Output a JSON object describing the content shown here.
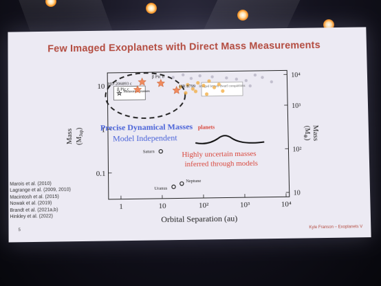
{
  "slide": {
    "title": "Few Imaged Exoplanets with Direct Mass Measurements",
    "page_number": "5",
    "credit": "Kyle Franson – Exoplanets V",
    "references": [
      "Marois et al. (2010)",
      "Lagrange et al. (2009, 2010)",
      "Macintosh et al. (2015)",
      "Nowak et al. (2019)",
      "Brandt et al. (2021a,b)",
      "Hinkley et al. (2022)"
    ]
  },
  "chart_data": {
    "type": "scatter",
    "xlabel": "Orbital Separation (au)",
    "ylabel": "Mass",
    "ylabel_unit": "(M",
    "ylabel_sub": "Jup",
    "right_ylabel": "Mass",
    "right_ylabel_unit": "(M",
    "right_ylabel_sub": "⊕",
    "x_scale": "log",
    "y_scale": "log",
    "xlim": [
      0.5,
      12000
    ],
    "ylim": [
      0.025,
      20
    ],
    "x_ticks": [
      "1",
      "10",
      "10²",
      "10³",
      "10⁴"
    ],
    "y_ticks": [
      "10",
      "1",
      "0.1"
    ],
    "right_y_ticks": [
      "10⁴",
      "10³",
      "10²",
      "10"
    ],
    "legend": {
      "entry": "Measured masses"
    },
    "labeled_points": [
      {
        "label": "HD 206893 c",
        "x": 3.5,
        "y": 12,
        "kind": "measured"
      },
      {
        "label": "β Pic b",
        "x": 10,
        "y": 11,
        "kind": "measured"
      },
      {
        "label": "β Pic c",
        "x": 2.7,
        "y": 8,
        "kind": "measured"
      },
      {
        "label": "HR 8799",
        "x": 24,
        "y": 7.5,
        "kind": "measured"
      },
      {
        "label": "Saturn",
        "x": 9.5,
        "y": 0.3,
        "kind": "solar-system"
      },
      {
        "label": "Uranus",
        "x": 19,
        "y": 0.046,
        "kind": "solar-system"
      },
      {
        "label": "Neptune",
        "x": 30,
        "y": 0.054,
        "kind": "solar-system"
      }
    ],
    "annotations": {
      "imaged_box": "Imaged brown dwarf companions",
      "planets_label": "planets",
      "blue_line_1": "Precise Dynamical Masses",
      "blue_line_2": "Model Independent",
      "red_line_1": "Highly uncertain masses",
      "red_line_2": "inferred through models"
    },
    "colors": {
      "measured": "#f08a5d",
      "uncertain": "#f2a93b",
      "brown_dwarf": "#b8b4c4",
      "blue_text": "#4a63d8",
      "red_text": "#d8453a"
    },
    "uncertain_points": [
      {
        "x": 30,
        "y": 9
      },
      {
        "x": 45,
        "y": 10
      },
      {
        "x": 60,
        "y": 8
      },
      {
        "x": 80,
        "y": 11
      },
      {
        "x": 110,
        "y": 9.5
      },
      {
        "x": 150,
        "y": 12
      },
      {
        "x": 200,
        "y": 8.5
      },
      {
        "x": 260,
        "y": 10
      },
      {
        "x": 320,
        "y": 7
      },
      {
        "x": 40,
        "y": 6.5
      },
      {
        "x": 70,
        "y": 7
      },
      {
        "x": 130,
        "y": 6
      }
    ],
    "brown_dwarf_points": [
      {
        "x": 20,
        "y": 15
      },
      {
        "x": 35,
        "y": 17
      },
      {
        "x": 55,
        "y": 14
      },
      {
        "x": 90,
        "y": 16
      },
      {
        "x": 180,
        "y": 15
      },
      {
        "x": 400,
        "y": 14
      },
      {
        "x": 700,
        "y": 13
      },
      {
        "x": 1200,
        "y": 12
      },
      {
        "x": 2000,
        "y": 16
      },
      {
        "x": 3000,
        "y": 14
      },
      {
        "x": 5000,
        "y": 11
      },
      {
        "x": 1500,
        "y": 9
      }
    ]
  }
}
